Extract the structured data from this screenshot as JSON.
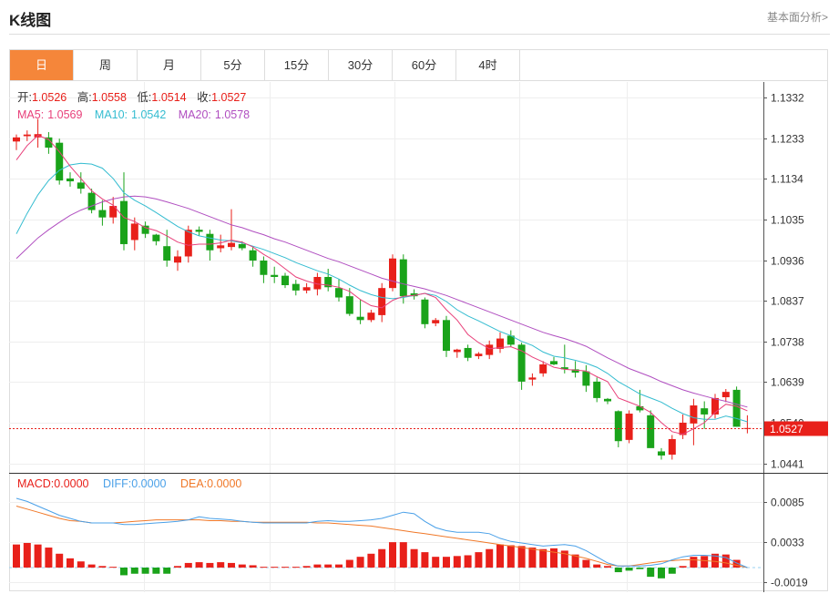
{
  "header": {
    "title": "K线图",
    "fundamental_link": "基本面分析>"
  },
  "tabs": [
    {
      "label": "日",
      "active": true
    },
    {
      "label": "周"
    },
    {
      "label": "月"
    },
    {
      "label": "5分"
    },
    {
      "label": "15分"
    },
    {
      "label": "30分"
    },
    {
      "label": "60分"
    },
    {
      "label": "4时"
    }
  ],
  "ohlc_legend": {
    "open_label": "开:",
    "open": "1.0526",
    "high_label": "高:",
    "high": "1.0558",
    "low_label": "低:",
    "low": "1.0514",
    "close_label": "收:",
    "close": "1.0527"
  },
  "ma_legend": {
    "ma5_label": "MA5:",
    "ma5": "1.0569",
    "ma10_label": "MA10:",
    "ma10": "1.0542",
    "ma20_label": "MA20:",
    "ma20": "1.0578"
  },
  "macd_legend": {
    "macd_label": "MACD:",
    "macd": "0.0000",
    "diff_label": "DIFF:",
    "diff": "0.0000",
    "dea_label": "DEA:",
    "dea": "0.0000"
  },
  "colors": {
    "up": "#e8201a",
    "down": "#1aa31a",
    "ma5": "#e8407a",
    "ma10": "#34bcd0",
    "ma20": "#b04ec0",
    "diff": "#4aa0e8",
    "dea": "#f07828",
    "tab_active": "#f5863a",
    "last_price": "#e8201a"
  },
  "chart_data": {
    "type": "candlestick",
    "price_axis_ticks": [
      "1.1332",
      "1.1233",
      "1.1134",
      "1.1035",
      "1.0936",
      "1.0837",
      "1.0738",
      "1.0639",
      "1.0540",
      "1.0441"
    ],
    "macd_axis_ticks": [
      "0.0085",
      "0.0033",
      "-0.0019"
    ],
    "price_range": [
      1.042,
      1.137
    ],
    "macd_range": [
      -0.0032,
      0.0122
    ],
    "last_price": "1.0527",
    "candles": [
      [
        1.1225,
        1.1242,
        1.1204,
        1.1235
      ],
      [
        1.1238,
        1.1252,
        1.1226,
        1.1242
      ],
      [
        1.1235,
        1.128,
        1.121,
        1.1243
      ],
      [
        1.1235,
        1.1248,
        1.1195,
        1.121
      ],
      [
        1.1222,
        1.1232,
        1.112,
        1.113
      ],
      [
        1.1135,
        1.115,
        1.1115,
        1.1128
      ],
      [
        1.1125,
        1.115,
        1.1098,
        1.111
      ],
      [
        1.11,
        1.111,
        1.105,
        1.1058
      ],
      [
        1.1058,
        1.1082,
        1.102,
        1.104
      ],
      [
        1.104,
        1.109,
        1.1025,
        1.1068
      ],
      [
        1.108,
        1.115,
        1.096,
        1.0975
      ],
      [
        1.0985,
        1.104,
        1.096,
        1.1025
      ],
      [
        1.102,
        1.103,
        1.099,
        1.1
      ],
      [
        1.0998,
        1.1,
        1.0972,
        1.0982
      ],
      [
        1.097,
        1.101,
        1.092,
        1.0935
      ],
      [
        1.093,
        1.096,
        1.091,
        1.0945
      ],
      [
        1.0945,
        1.102,
        1.093,
        1.101
      ],
      [
        1.101,
        1.1018,
        1.0995,
        1.1005
      ],
      [
        1.1,
        1.101,
        1.0935,
        1.096
      ],
      [
        1.0965,
        1.0998,
        1.0955,
        1.0972
      ],
      [
        1.0968,
        1.106,
        1.096,
        1.0978
      ],
      [
        1.0975,
        1.0982,
        1.096,
        1.0965
      ],
      [
        1.096,
        1.0968,
        1.092,
        1.0935
      ],
      [
        1.0935,
        1.0945,
        1.088,
        1.09
      ],
      [
        1.09,
        1.092,
        1.088,
        1.0895
      ],
      [
        1.0898,
        1.0905,
        1.0868,
        1.0875
      ],
      [
        1.0878,
        1.0888,
        1.085,
        1.0862
      ],
      [
        1.0862,
        1.088,
        1.0855,
        1.087
      ],
      [
        1.0865,
        1.0905,
        1.085,
        1.0895
      ],
      [
        1.0895,
        1.0915,
        1.086,
        1.087
      ],
      [
        1.0868,
        1.089,
        1.0835,
        1.0845
      ],
      [
        1.0848,
        1.0868,
        1.08,
        1.0805
      ],
      [
        1.0798,
        1.084,
        1.078,
        1.079
      ],
      [
        1.079,
        1.0815,
        1.0785,
        1.0808
      ],
      [
        1.0802,
        1.088,
        1.0785,
        1.0868
      ],
      [
        1.0868,
        1.095,
        1.086,
        1.094
      ],
      [
        1.0938,
        1.095,
        1.083,
        1.0848
      ],
      [
        1.0855,
        1.0865,
        1.084,
        1.0848
      ],
      [
        1.084,
        1.0845,
        1.077,
        1.078
      ],
      [
        1.0782,
        1.0795,
        1.0775,
        1.079
      ],
      [
        1.079,
        1.08,
        1.07,
        1.0715
      ],
      [
        1.0712,
        1.072,
        1.0698,
        1.0718
      ],
      [
        1.0722,
        1.073,
        1.069,
        1.0698
      ],
      [
        1.0702,
        1.0712,
        1.0695,
        1.0708
      ],
      [
        1.0705,
        1.074,
        1.0695,
        1.073
      ],
      [
        1.072,
        1.076,
        1.071,
        1.0745
      ],
      [
        1.0752,
        1.0765,
        1.0725,
        1.073
      ],
      [
        1.073,
        1.0735,
        1.062,
        1.064
      ],
      [
        1.0645,
        1.066,
        1.063,
        1.065
      ],
      [
        1.066,
        1.069,
        1.0652,
        1.0682
      ],
      [
        1.069,
        1.07,
        1.068,
        1.0682
      ],
      [
        1.0675,
        1.073,
        1.066,
        1.067
      ],
      [
        1.067,
        1.069,
        1.065,
        1.0662
      ],
      [
        1.0665,
        1.068,
        1.0615,
        1.063
      ],
      [
        1.064,
        1.065,
        1.059,
        1.06
      ],
      [
        1.0598,
        1.06,
        1.0585,
        1.0592
      ],
      [
        1.0568,
        1.057,
        1.048,
        1.0495
      ],
      [
        1.0498,
        1.057,
        1.049,
        1.0562
      ],
      [
        1.058,
        1.062,
        1.0565,
        1.057
      ],
      [
        1.0558,
        1.057,
        1.048,
        1.0478
      ],
      [
        1.047,
        1.0478,
        1.045,
        1.046
      ],
      [
        1.0462,
        1.051,
        1.045,
        1.05
      ],
      [
        1.051,
        1.056,
        1.05,
        1.054
      ],
      [
        1.0538,
        1.0598,
        1.0485,
        1.0582
      ],
      [
        1.0575,
        1.0592,
        1.0525,
        1.056
      ],
      [
        1.056,
        1.061,
        1.055,
        1.06
      ],
      [
        1.0602,
        1.0622,
        1.059,
        1.0615
      ],
      [
        1.062,
        1.0628,
        1.053,
        1.053
      ],
      [
        1.0526,
        1.0558,
        1.0514,
        1.0527
      ]
    ],
    "ma5": [
      1.118,
      1.1215,
      1.124,
      1.123,
      1.12,
      1.1165,
      1.1135,
      1.1105,
      1.1085,
      1.107,
      1.104,
      1.103,
      1.1015,
      1.1008,
      1.0995,
      1.098,
      1.0972,
      1.0975,
      1.0975,
      1.0978,
      1.0985,
      1.098,
      1.0968,
      1.095,
      1.0935,
      1.0915,
      1.0895,
      1.0885,
      1.0878,
      1.0875,
      1.087,
      1.086,
      1.084,
      1.0825,
      1.082,
      1.0838,
      1.0848,
      1.085,
      1.0855,
      1.0845,
      1.0815,
      1.079,
      1.0755,
      1.0735,
      1.072,
      1.0723,
      1.0725,
      1.0715,
      1.07,
      1.0688,
      1.0675,
      1.067,
      1.0668,
      1.0666,
      1.0652,
      1.064,
      1.06,
      1.059,
      1.058,
      1.0565,
      1.054,
      1.0518,
      1.0512,
      1.0525,
      1.054,
      1.0565,
      1.0585,
      1.058,
      1.0569
    ],
    "ma10": [
      1.1,
      1.105,
      1.1095,
      1.113,
      1.1155,
      1.1168,
      1.1172,
      1.117,
      1.116,
      1.1135,
      1.11,
      1.1082,
      1.1068,
      1.1052,
      1.1035,
      1.1018,
      1.1005,
      1.0995,
      1.099,
      1.0985,
      1.0983,
      1.0978,
      1.097,
      1.0962,
      1.0952,
      1.0942,
      1.093,
      1.092,
      1.091,
      1.0902,
      1.089,
      1.0875,
      1.0862,
      1.0852,
      1.0845,
      1.0842,
      1.0845,
      1.085,
      1.0855,
      1.085,
      1.0835,
      1.0815,
      1.08,
      1.0788,
      1.0775,
      1.0762,
      1.0752,
      1.0738,
      1.0728,
      1.0712,
      1.0702,
      1.0698,
      1.0692,
      1.0685,
      1.0675,
      1.066,
      1.064,
      1.0625,
      1.061,
      1.06,
      1.059,
      1.0575,
      1.0562,
      1.0552,
      1.0548,
      1.0548,
      1.0556,
      1.055,
      1.0542
    ],
    "ma20": [
      1.094,
      1.0965,
      1.099,
      1.101,
      1.1028,
      1.1045,
      1.1058,
      1.1068,
      1.1078,
      1.1085,
      1.109,
      1.1092,
      1.109,
      1.1085,
      1.1078,
      1.107,
      1.1062,
      1.1052,
      1.1042,
      1.1032,
      1.1022,
      1.1015,
      1.1006,
      1.0998,
      1.0988,
      1.098,
      1.097,
      1.096,
      1.095,
      1.094,
      1.0932,
      1.0922,
      1.0912,
      1.0902,
      1.0892,
      1.0885,
      1.0878,
      1.0872,
      1.0866,
      1.0858,
      1.085,
      1.084,
      1.083,
      1.082,
      1.081,
      1.08,
      1.079,
      1.078,
      1.077,
      1.076,
      1.0752,
      1.0745,
      1.0736,
      1.0726,
      1.0712,
      1.0698,
      1.0685,
      1.0672,
      1.0662,
      1.0652,
      1.064,
      1.063,
      1.062,
      1.0612,
      1.0605,
      1.0598,
      1.0592,
      1.0585,
      1.0578
    ],
    "macd_hist": [
      0.003,
      0.0032,
      0.003,
      0.0026,
      0.0018,
      0.0012,
      0.0008,
      0.0004,
      0.0002,
      0.0001,
      -0.001,
      -0.0008,
      -0.0008,
      -0.0008,
      -0.0008,
      0.0002,
      0.0006,
      0.0007,
      0.0006,
      0.0007,
      0.0006,
      0.0004,
      0.0003,
      0.0001,
      0.0001,
      0.0001,
      0.0001,
      0.0002,
      0.0004,
      0.0004,
      0.0004,
      0.001,
      0.0014,
      0.0018,
      0.0024,
      0.0033,
      0.0033,
      0.0024,
      0.002,
      0.0014,
      0.0014,
      0.0015,
      0.0016,
      0.002,
      0.0024,
      0.003,
      0.0029,
      0.0028,
      0.0026,
      0.0024,
      0.0025,
      0.0022,
      0.0017,
      0.001,
      0.0004,
      0.0002,
      -0.0006,
      -0.0004,
      -0.0002,
      -0.0012,
      -0.0014,
      -0.0008,
      0.0002,
      0.0014,
      0.0015,
      0.0018,
      0.0017,
      0.001,
      0.0
    ],
    "diff": [
      0.009,
      0.0086,
      0.008,
      0.0074,
      0.0068,
      0.0064,
      0.006,
      0.0058,
      0.0058,
      0.0058,
      0.0056,
      0.0056,
      0.0057,
      0.0058,
      0.0059,
      0.006,
      0.0062,
      0.0066,
      0.0064,
      0.0063,
      0.0062,
      0.006,
      0.0059,
      0.0058,
      0.0058,
      0.0058,
      0.0058,
      0.0058,
      0.006,
      0.0061,
      0.006,
      0.006,
      0.0061,
      0.0062,
      0.0064,
      0.0068,
      0.0072,
      0.007,
      0.006,
      0.0052,
      0.0048,
      0.0046,
      0.0046,
      0.0046,
      0.0044,
      0.0038,
      0.0034,
      0.0032,
      0.003,
      0.0028,
      0.0029,
      0.003,
      0.0028,
      0.0022,
      0.0014,
      0.0006,
      0.0002,
      0.0002,
      0.0002,
      0.0003,
      0.0005,
      0.001,
      0.0014,
      0.0016,
      0.0016,
      0.0015,
      0.0013,
      0.0006,
      0.0
    ],
    "dea": [
      0.008,
      0.0076,
      0.0072,
      0.0068,
      0.0064,
      0.0061,
      0.006,
      0.0058,
      0.0058,
      0.0058,
      0.0059,
      0.006,
      0.0061,
      0.0062,
      0.0062,
      0.0062,
      0.0062,
      0.0062,
      0.0061,
      0.0061,
      0.006,
      0.006,
      0.0059,
      0.0059,
      0.0059,
      0.0059,
      0.0059,
      0.0059,
      0.0058,
      0.0058,
      0.0057,
      0.0056,
      0.0055,
      0.0054,
      0.0052,
      0.005,
      0.0048,
      0.0046,
      0.0044,
      0.0042,
      0.004,
      0.0038,
      0.0036,
      0.0034,
      0.0032,
      0.003,
      0.0028,
      0.0026,
      0.0024,
      0.0022,
      0.002,
      0.0018,
      0.0015,
      0.0012,
      0.0008,
      0.0004,
      0.0002,
      0.0002,
      0.0004,
      0.0006,
      0.0008,
      0.0009,
      0.001,
      0.001,
      0.0009,
      0.0008,
      0.0006,
      0.0003,
      0.0
    ]
  }
}
